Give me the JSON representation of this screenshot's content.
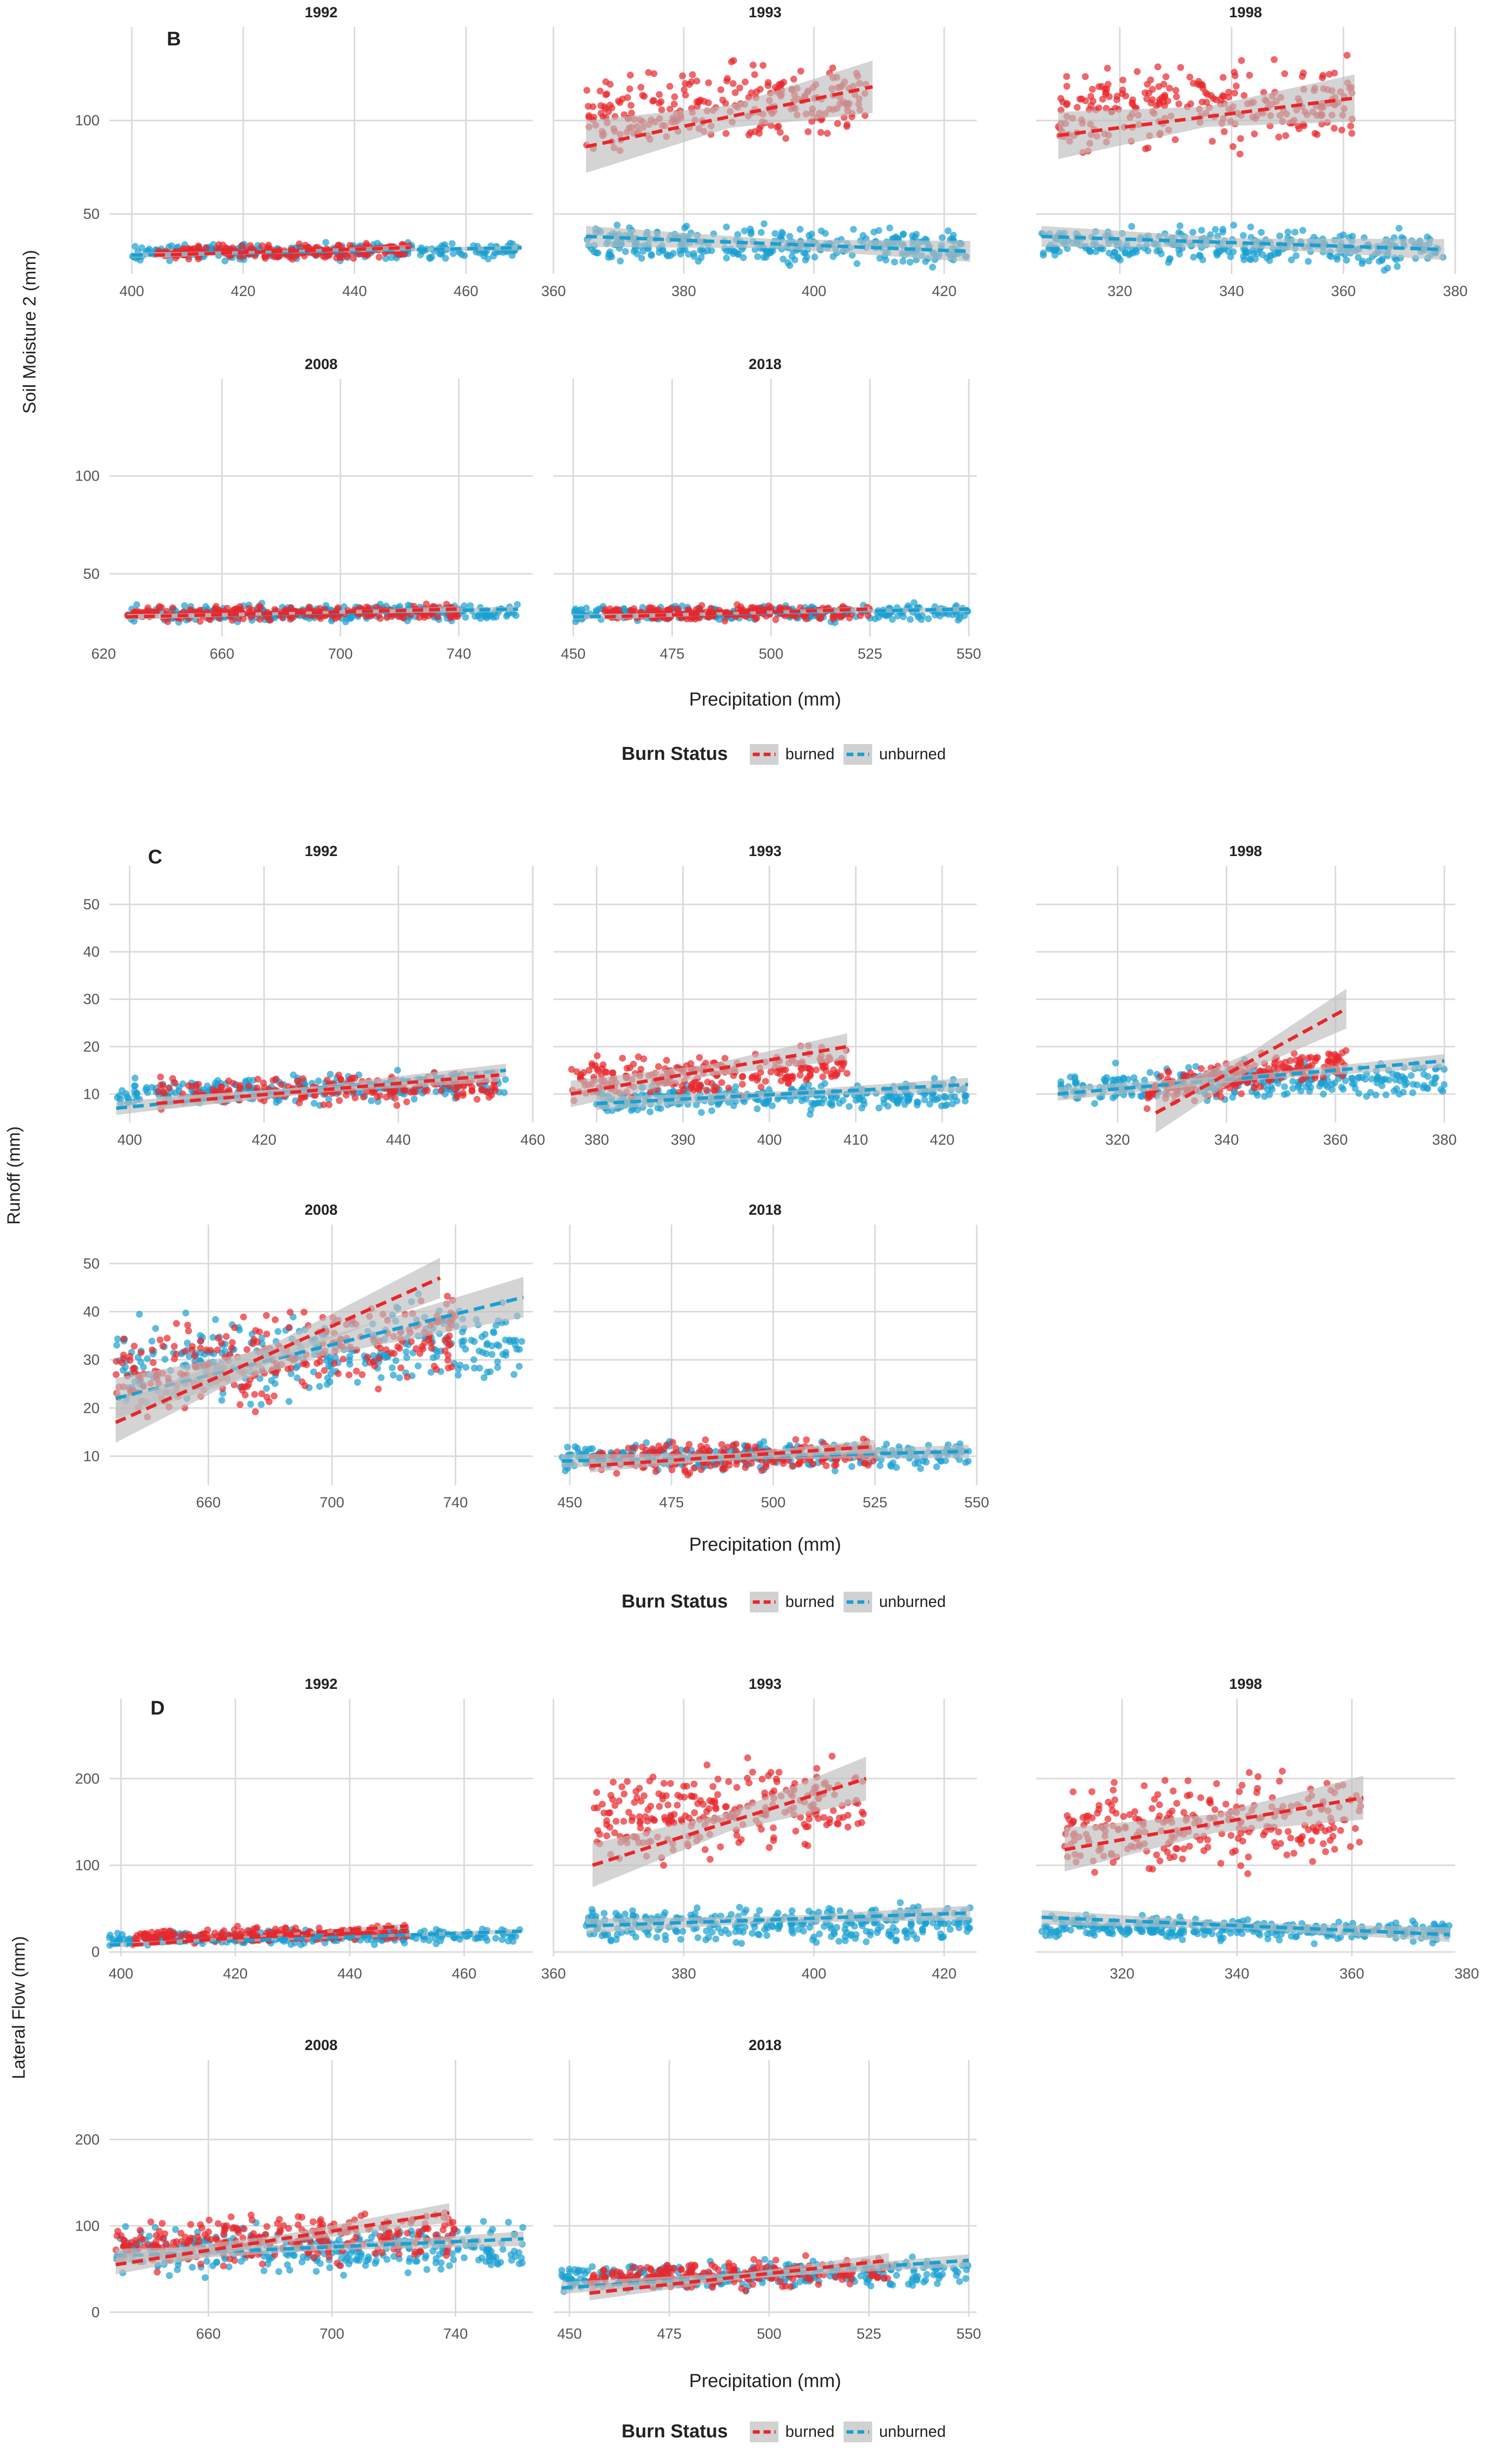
{
  "colors": {
    "burned": "#e8262b",
    "unburned": "#1a9fd1",
    "band": "#bdbdbd",
    "grid": "#d9d9d9",
    "text": "#222222"
  },
  "chart_data": [
    {
      "panel_letter": "B",
      "type": "scatter",
      "ylabel": "Soil Moisture 2 (mm)",
      "xlabel": "Precipitation (mm)",
      "legend": {
        "title": "Burn Status",
        "entries": [
          "burned",
          "unburned"
        ],
        "placement": "bottom"
      },
      "yticks": [
        "50",
        "100"
      ],
      "ylim": [
        18,
        142
      ],
      "facets": [
        {
          "title": "1992",
          "xlim": [
            396,
            472
          ],
          "xticks": [
            "400",
            "420",
            "440",
            "460"
          ],
          "xtick_values": [
            400,
            420,
            440,
            460
          ],
          "burned": {
            "x_range": [
              404,
              450
            ],
            "y_center": 30,
            "y_spread": 5,
            "n": 220,
            "fit": [
              [
                404,
                28
              ],
              [
                450,
                32
              ]
            ],
            "band": 1
          },
          "unburned": {
            "x_range": [
              400,
              470
            ],
            "y_center": 30,
            "y_spread": 6,
            "n": 260,
            "fit": [
              [
                400,
                28
              ],
              [
                470,
                32
              ]
            ],
            "band": 1
          }
        },
        {
          "title": "1993",
          "xlim": [
            360,
            425
          ],
          "xticks": [
            "360",
            "380",
            "400",
            "420"
          ],
          "xtick_values": [
            360,
            380,
            400,
            420
          ],
          "burned": {
            "x_range": [
              365,
              408
            ],
            "y_center": 110,
            "y_spread": 28,
            "n": 260,
            "fit": [
              [
                365,
                86
              ],
              [
                409,
                118
              ]
            ],
            "band": 10
          },
          "unburned": {
            "x_range": [
              365,
              424
            ],
            "y_center": 32,
            "y_spread": 14,
            "n": 320,
            "fit": [
              [
                365,
                38
              ],
              [
                424,
                30
              ]
            ],
            "band": 4
          }
        },
        {
          "title": "1998",
          "xlim": [
            305,
            380
          ],
          "xticks": [
            "320",
            "340",
            "360",
            "380"
          ],
          "xtick_values": [
            320,
            340,
            360,
            380
          ],
          "burned": {
            "x_range": [
              309,
              362
            ],
            "y_center": 110,
            "y_spread": 30,
            "n": 260,
            "fit": [
              [
                309,
                92
              ],
              [
                362,
                112
              ]
            ],
            "band": 9
          },
          "unburned": {
            "x_range": [
              306,
              378
            ],
            "y_center": 32,
            "y_spread": 14,
            "n": 320,
            "fit": [
              [
                306,
                38
              ],
              [
                378,
                31
              ]
            ],
            "band": 4
          }
        },
        {
          "title": "2008",
          "xlim": [
            622,
            765
          ],
          "xticks": [
            "620",
            "660",
            "700",
            "740"
          ],
          "xtick_values": [
            620,
            660,
            700,
            740
          ],
          "burned": {
            "x_range": [
              628,
              740
            ],
            "y_center": 30,
            "y_spread": 5,
            "n": 240,
            "fit": [
              [
                628,
                28
              ],
              [
                740,
                32
              ]
            ],
            "band": 1
          },
          "unburned": {
            "x_range": [
              628,
              760
            ],
            "y_center": 30,
            "y_spread": 6,
            "n": 280,
            "fit": [
              [
                628,
                28
              ],
              [
                760,
                32
              ]
            ],
            "band": 1
          }
        },
        {
          "title": "2018",
          "xlim": [
            445,
            552
          ],
          "xticks": [
            "450",
            "475",
            "500",
            "525",
            "550"
          ],
          "xtick_values": [
            450,
            475,
            500,
            525,
            550
          ],
          "burned": {
            "x_range": [
              458,
              525
            ],
            "y_center": 30,
            "y_spread": 5,
            "n": 240,
            "fit": [
              [
                458,
                28
              ],
              [
                525,
                32
              ]
            ],
            "band": 1
          },
          "unburned": {
            "x_range": [
              450,
              550
            ],
            "y_center": 30,
            "y_spread": 6,
            "n": 280,
            "fit": [
              [
                450,
                28
              ],
              [
                550,
                32
              ]
            ],
            "band": 1
          }
        }
      ]
    },
    {
      "panel_letter": "C",
      "type": "scatter",
      "ylabel": "Runoff (mm)",
      "xlabel": "Precipitation (mm)",
      "legend": {
        "title": "Burn Status",
        "entries": [
          "burned",
          "unburned"
        ],
        "placement": "bottom"
      },
      "yticks": [
        "10",
        "20",
        "30",
        "40",
        "50"
      ],
      "ylim": [
        4,
        55
      ],
      "facets": [
        {
          "title": "1992",
          "xlim": [
            397,
            460
          ],
          "xticks": [
            "400",
            "420",
            "440",
            "460"
          ],
          "xtick_values": [
            400,
            420,
            440,
            460
          ],
          "burned": {
            "x_range": [
              404,
              455
            ],
            "y_center": 11,
            "y_spread": 4,
            "n": 220,
            "fit": [
              [
                404,
                8
              ],
              [
                455,
                14
              ]
            ],
            "band": 1
          },
          "unburned": {
            "x_range": [
              398,
              456
            ],
            "y_center": 11,
            "y_spread": 4,
            "n": 260,
            "fit": [
              [
                398,
                7
              ],
              [
                456,
                15
              ]
            ],
            "band": 1
          }
        },
        {
          "title": "1993",
          "xlim": [
            375,
            424
          ],
          "xticks": [
            "380",
            "390",
            "400",
            "410",
            "420"
          ],
          "xtick_values": [
            380,
            390,
            400,
            410,
            420
          ],
          "burned": {
            "x_range": [
              377,
              409
            ],
            "y_center": 14,
            "y_spread": 6,
            "n": 240,
            "fit": [
              [
                377,
                10
              ],
              [
                409,
                20
              ]
            ],
            "band": 2
          },
          "unburned": {
            "x_range": [
              380,
              423
            ],
            "y_center": 9,
            "y_spread": 4,
            "n": 300,
            "fit": [
              [
                380,
                8
              ],
              [
                423,
                12
              ]
            ],
            "band": 1
          }
        },
        {
          "title": "1998",
          "xlim": [
            305,
            382
          ],
          "xticks": [
            "320",
            "340",
            "360",
            "380"
          ],
          "xtick_values": [
            320,
            340,
            360,
            380
          ],
          "burned": {
            "x_range": [
              325,
              362
            ],
            "y_center": 13,
            "y_spread": 5,
            "n": 200,
            "fit": [
              [
                327,
                6
              ],
              [
                362,
                28
              ]
            ],
            "band": 3
          },
          "unburned": {
            "x_range": [
              309,
              380
            ],
            "y_center": 12,
            "y_spread": 5,
            "n": 300,
            "fit": [
              [
                309,
                10
              ],
              [
                380,
                17
              ]
            ],
            "band": 1
          }
        },
        {
          "title": "2008",
          "xlim": [
            628,
            765
          ],
          "xticks": [
            "660",
            "700",
            "740"
          ],
          "xtick_values": [
            660,
            700,
            740
          ],
          "burned": {
            "x_range": [
              630,
              740
            ],
            "y_center": 30,
            "y_spread": 12,
            "n": 280,
            "fit": [
              [
                630,
                17
              ],
              [
                735,
                47
              ]
            ],
            "band": 3
          },
          "unburned": {
            "x_range": [
              630,
              762
            ],
            "y_center": 31,
            "y_spread": 12,
            "n": 320,
            "fit": [
              [
                630,
                22
              ],
              [
                762,
                43
              ]
            ],
            "band": 3
          }
        },
        {
          "title": "2018",
          "xlim": [
            446,
            550
          ],
          "xticks": [
            "450",
            "475",
            "500",
            "525",
            "550"
          ],
          "xtick_values": [
            450,
            475,
            500,
            525,
            550
          ],
          "burned": {
            "x_range": [
              455,
              525
            ],
            "y_center": 10,
            "y_spread": 4,
            "n": 240,
            "fit": [
              [
                455,
                8
              ],
              [
                525,
                12
              ]
            ],
            "band": 1
          },
          "unburned": {
            "x_range": [
              448,
              548
            ],
            "y_center": 10,
            "y_spread": 4,
            "n": 300,
            "fit": [
              [
                448,
                9
              ],
              [
                548,
                11
              ]
            ],
            "band": 1
          }
        }
      ]
    },
    {
      "panel_letter": "D",
      "type": "scatter",
      "ylabel": "Lateral Flow (mm)",
      "xlabel": "Precipitation (mm)",
      "legend": {
        "title": "Burn Status",
        "entries": [
          "burned",
          "unburned"
        ],
        "placement": "bottom"
      },
      "yticks": [
        "0",
        "100",
        "200"
      ],
      "ylim": [
        -5,
        275
      ],
      "facets": [
        {
          "title": "1992",
          "xlim": [
            398,
            472
          ],
          "xticks": [
            "400",
            "420",
            "440",
            "460"
          ],
          "xtick_values": [
            400,
            420,
            440,
            460
          ],
          "burned": {
            "x_range": [
              402,
              450
            ],
            "y_center": 20,
            "y_spread": 12,
            "n": 220,
            "fit": [
              [
                402,
                8
              ],
              [
                450,
                30
              ]
            ],
            "band": 2
          },
          "unburned": {
            "x_range": [
              398,
              470
            ],
            "y_center": 18,
            "y_spread": 12,
            "n": 260,
            "fit": [
              [
                398,
                8
              ],
              [
                470,
                24
              ]
            ],
            "band": 2
          }
        },
        {
          "title": "1993",
          "xlim": [
            360,
            425
          ],
          "xticks": [
            "360",
            "380",
            "400",
            "420"
          ],
          "xtick_values": [
            360,
            380,
            400,
            420
          ],
          "burned": {
            "x_range": [
              366,
              408
            ],
            "y_center": 170,
            "y_spread": 70,
            "n": 260,
            "fit": [
              [
                366,
                100
              ],
              [
                408,
                200
              ]
            ],
            "band": 18
          },
          "unburned": {
            "x_range": [
              365,
              424
            ],
            "y_center": 30,
            "y_spread": 28,
            "n": 320,
            "fit": [
              [
                365,
                30
              ],
              [
                424,
                45
              ]
            ],
            "band": 6
          }
        },
        {
          "title": "1998",
          "xlim": [
            305,
            378
          ],
          "xticks": [
            "320",
            "340",
            "360",
            "380"
          ],
          "xtick_values": [
            320,
            340,
            360,
            380
          ],
          "burned": {
            "x_range": [
              310,
              362
            ],
            "y_center": 150,
            "y_spread": 70,
            "n": 260,
            "fit": [
              [
                310,
                118
              ],
              [
                362,
                178
              ]
            ],
            "band": 18
          },
          "unburned": {
            "x_range": [
              306,
              377
            ],
            "y_center": 25,
            "y_spread": 18,
            "n": 320,
            "fit": [
              [
                306,
                40
              ],
              [
                377,
                20
              ]
            ],
            "band": 6
          }
        },
        {
          "title": "2008",
          "xlim": [
            628,
            765
          ],
          "xticks": [
            "660",
            "700",
            "740"
          ],
          "xtick_values": [
            660,
            700,
            740
          ],
          "burned": {
            "x_range": [
              630,
              740
            ],
            "y_center": 85,
            "y_spread": 40,
            "n": 280,
            "fit": [
              [
                630,
                55
              ],
              [
                738,
                115
              ]
            ],
            "band": 8
          },
          "unburned": {
            "x_range": [
              630,
              762
            ],
            "y_center": 70,
            "y_spread": 38,
            "n": 320,
            "fit": [
              [
                630,
                65
              ],
              [
                762,
                85
              ]
            ],
            "band": 6
          }
        },
        {
          "title": "2018",
          "xlim": [
            446,
            552
          ],
          "xticks": [
            "450",
            "475",
            "500",
            "525",
            "550"
          ],
          "xtick_values": [
            450,
            475,
            500,
            525,
            550
          ],
          "burned": {
            "x_range": [
              455,
              530
            ],
            "y_center": 45,
            "y_spread": 22,
            "n": 240,
            "fit": [
              [
                455,
                22
              ],
              [
                530,
                60
              ]
            ],
            "band": 6
          },
          "unburned": {
            "x_range": [
              448,
              550
            ],
            "y_center": 42,
            "y_spread": 22,
            "n": 300,
            "fit": [
              [
                448,
                28
              ],
              [
                550,
                60
              ]
            ],
            "band": 5
          }
        }
      ]
    }
  ]
}
